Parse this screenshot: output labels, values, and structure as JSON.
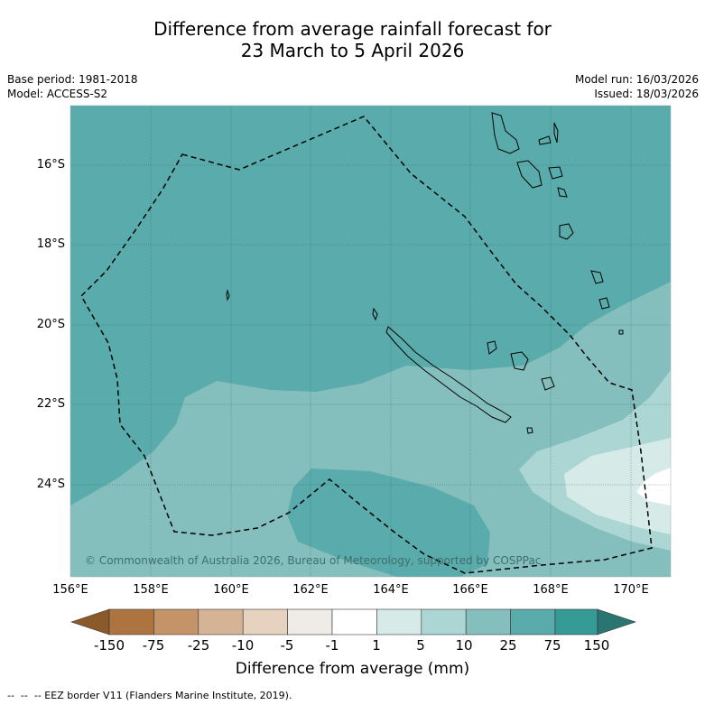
{
  "title": {
    "line1": "Difference from average rainfall forecast for",
    "line2": "23 March to 5 April 2026"
  },
  "meta_left": {
    "base_period": "Base period: 1981-2018",
    "model": "Model: ACCESS-S2"
  },
  "meta_right": {
    "model_run": "Model run: 16/03/2026",
    "issued": "Issued: 18/03/2026"
  },
  "map": {
    "lat_labels": [
      "16°S",
      "18°S",
      "20°S",
      "22°S",
      "24°S"
    ],
    "lon_labels": [
      "156°E",
      "158°E",
      "160°E",
      "162°E",
      "164°E",
      "166°E",
      "168°E",
      "170°E"
    ],
    "copyright": "© Commonwealth of Australia 2026, Bureau of Meteorology, supported by COSPPac",
    "eez_style": "dashed black",
    "gridlines": true
  },
  "colorbar": {
    "ticks": [
      "-150",
      "-75",
      "-25",
      "-10",
      "-5",
      "-1",
      "1",
      "5",
      "10",
      "25",
      "75",
      "150"
    ],
    "colors": {
      "lt-150": "#8a5a2b",
      "-150_-75": "#ad7440",
      "-75_-25": "#c49468",
      "-25_-10": "#d5b395",
      "-10_-5": "#e6d2bf",
      "-5_-1": "#efebe6",
      "-1_1": "#ffffff",
      "1_5": "#d6eae7",
      "5_10": "#acd6d3",
      "10_25": "#84bfbd",
      "25_75": "#5aabab",
      "75_150": "#369a97",
      "gt150": "#2a7572"
    },
    "label": "Difference from average (mm)"
  },
  "footnote": "--  --  -- EEZ border V11 (Flanders Marine Institute, 2019)."
}
